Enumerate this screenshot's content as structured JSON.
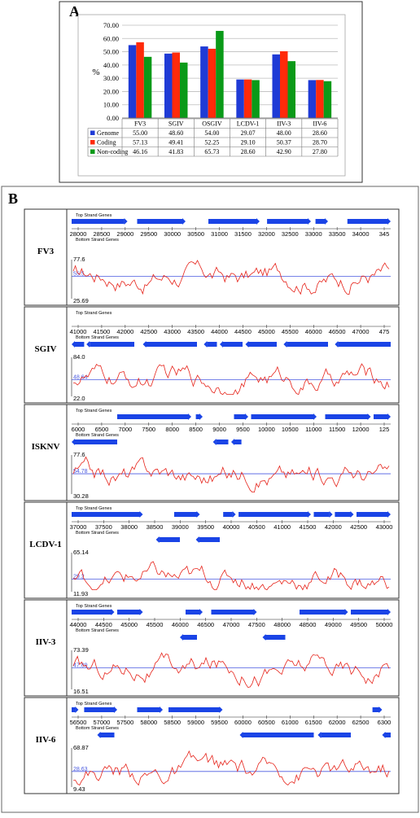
{
  "panel_a": {
    "label": "A",
    "table_rows": [
      {
        "name": "Genome",
        "color": "#1f3bd6",
        "values": [
          "55.00",
          "48.60",
          "54.00",
          "29.07",
          "48.00",
          "28.60"
        ]
      },
      {
        "name": "Coding",
        "color": "#ff2a0a",
        "values": [
          "57.13",
          "49.41",
          "52.25",
          "29.10",
          "50.37",
          "28.70"
        ]
      },
      {
        "name": "Non-coding",
        "color": "#0a9a18",
        "values": [
          "46.16",
          "41.83",
          "65.73",
          "28.60",
          "42.90",
          "27.80"
        ]
      }
    ]
  },
  "panel_b": {
    "label": "B",
    "top_label": "Top Strand Genes",
    "bottom_label": "Bottom Strand Genes",
    "gene_color": "#1a44e6",
    "line_color": "#e6231a",
    "mean_color": "#4a5ae0",
    "tracks": [
      {
        "name": "FV3",
        "ticks": [
          "28000",
          "28500",
          "29000",
          "29500",
          "30000",
          "30500",
          "31000",
          "31500",
          "32000",
          "32500",
          "33000",
          "33500",
          "34000",
          "345"
        ],
        "ymax": "77.6",
        "ymin": "25.69",
        "mean_label": "55.5",
        "mean_frac": 0.57,
        "top_genes": [
          [
            0,
            98
          ],
          [
            115,
            200
          ],
          [
            240,
            330
          ],
          [
            343,
            420
          ],
          [
            428,
            450
          ],
          [
            484,
            560
          ]
        ],
        "bottom_genes": []
      },
      {
        "name": "SGIV",
        "ticks": [
          "41000",
          "41500",
          "42000",
          "42500",
          "43000",
          "43500",
          "44000",
          "44500",
          "45000",
          "45500",
          "46000",
          "46500",
          "47000",
          "475"
        ],
        "ymax": "84.0",
        "ymin": "22.0",
        "mean_label": "48.64",
        "mean_frac": 0.43,
        "top_genes": [],
        "bottom_genes": [
          [
            0,
            22
          ],
          [
            26,
            110
          ],
          [
            125,
            220
          ],
          [
            232,
            255
          ],
          [
            260,
            300
          ],
          [
            305,
            360
          ],
          [
            372,
            450
          ],
          [
            462,
            560
          ]
        ]
      },
      {
        "name": "ISKNV",
        "ticks": [
          "6000",
          "6500",
          "7000",
          "7500",
          "8000",
          "8500",
          "9000",
          "9500",
          "10000",
          "10500",
          "11000",
          "11500",
          "12000",
          "125"
        ],
        "ymax": "77.6",
        "ymin": "30.28",
        "mean_label": "54.78",
        "mean_frac": 0.52,
        "top_genes": [
          [
            80,
            210
          ],
          [
            218,
            230
          ],
          [
            285,
            310
          ],
          [
            315,
            430
          ],
          [
            445,
            525
          ],
          [
            530,
            560
          ]
        ],
        "bottom_genes": [
          [
            0,
            80
          ],
          [
            248,
            275
          ],
          [
            280,
            298
          ]
        ]
      },
      {
        "name": "LCDV-1",
        "ticks": [
          "37000",
          "37500",
          "38000",
          "38500",
          "39000",
          "39500",
          "40000",
          "40500",
          "41000",
          "41500",
          "42000",
          "42500",
          "43000"
        ],
        "ymax": "65.14",
        "ymin": "11.93",
        "mean_label": "29.2",
        "mean_frac": 0.32,
        "top_genes": [
          [
            0,
            125
          ],
          [
            180,
            225
          ],
          [
            266,
            288
          ],
          [
            293,
            420
          ],
          [
            425,
            458
          ],
          [
            462,
            495
          ],
          [
            500,
            560
          ]
        ],
        "bottom_genes": [
          [
            148,
            190
          ],
          [
            218,
            260
          ]
        ]
      },
      {
        "name": "IIV-3",
        "ticks": [
          "44000",
          "44500",
          "45000",
          "45500",
          "46000",
          "46500",
          "47000",
          "47500",
          "48000",
          "48500",
          "49000",
          "49500",
          "50000"
        ],
        "ymax": "73.39",
        "ymin": "16.51",
        "mean_label": "47.89",
        "mean_frac": 0.55,
        "top_genes": [
          [
            0,
            75
          ],
          [
            80,
            125
          ],
          [
            200,
            230
          ],
          [
            245,
            325
          ],
          [
            400,
            485
          ],
          [
            490,
            560
          ]
        ],
        "bottom_genes": [
          [
            190,
            220
          ],
          [
            335,
            375
          ]
        ]
      },
      {
        "name": "IIV-6",
        "ticks": [
          "56500",
          "57000",
          "57500",
          "58000",
          "58500",
          "59000",
          "59500",
          "60000",
          "60500",
          "61000",
          "61500",
          "62000",
          "62500",
          "6300"
        ],
        "ymax": "68.87",
        "ymin": "9.43",
        "mean_label": "28.63",
        "mean_frac": 0.4,
        "top_genes": [
          [
            0,
            12
          ],
          [
            22,
            80
          ],
          [
            115,
            160
          ],
          [
            170,
            265
          ],
          [
            528,
            545
          ]
        ],
        "bottom_genes": [
          [
            45,
            75
          ],
          [
            295,
            425
          ],
          [
            432,
            490
          ],
          [
            545,
            560
          ]
        ]
      }
    ]
  },
  "chart_data": {
    "type": "bar",
    "ylabel": "%",
    "ylim": [
      0,
      70
    ],
    "yticks": [
      "0.00",
      "10.00",
      "20.00",
      "30.00",
      "40.00",
      "50.00",
      "60.00",
      "70.00"
    ],
    "categories": [
      "FV3",
      "SGIV",
      "OSGIV",
      "LCDV-1",
      "IIV-3",
      "IIV-6"
    ],
    "series": [
      {
        "name": "Genome",
        "color": "#1f3bd6",
        "values": [
          55.0,
          48.6,
          54.0,
          29.07,
          48.0,
          28.6
        ]
      },
      {
        "name": "Coding",
        "color": "#ff2a0a",
        "values": [
          57.13,
          49.41,
          52.25,
          29.1,
          50.37,
          28.7
        ]
      },
      {
        "name": "Non-coding",
        "color": "#0a9a18",
        "values": [
          46.16,
          41.83,
          65.73,
          28.6,
          42.9,
          27.8
        ]
      }
    ],
    "grid": true,
    "legend": "table-below"
  }
}
